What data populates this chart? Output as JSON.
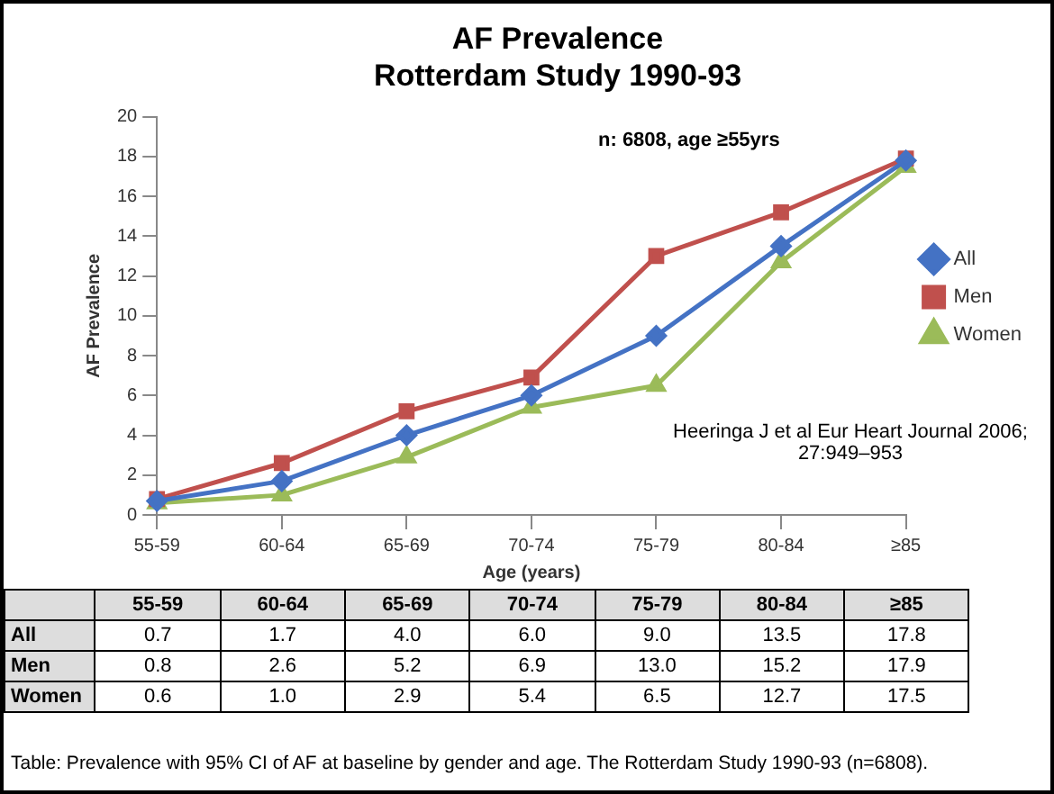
{
  "chart_data": {
    "type": "line",
    "title": "AF Prevalence",
    "subtitle": "Rotterdam Study 1990-93",
    "xlabel": "Age (years)",
    "ylabel": "AF Prevalence",
    "categories": [
      "55-59",
      "60-64",
      "65-69",
      "70-74",
      "75-79",
      "80-84",
      "≥85"
    ],
    "series": [
      {
        "name": "All",
        "color": "#4472c4",
        "marker": "diamond",
        "values": [
          0.7,
          1.7,
          4.0,
          6.0,
          9.0,
          13.5,
          17.8
        ],
        "value_labels": [
          "0.7",
          "1.7",
          "4.0",
          "6.0",
          "9.0",
          "13.5",
          "17.8"
        ]
      },
      {
        "name": "Men",
        "color": "#c0504d",
        "marker": "square",
        "values": [
          0.8,
          2.6,
          5.2,
          6.9,
          13.0,
          15.2,
          17.9
        ],
        "value_labels": [
          "0.8",
          "2.6",
          "5.2",
          "6.9",
          "13.0",
          "15.2",
          "17.9"
        ]
      },
      {
        "name": "Women",
        "color": "#9bbb59",
        "marker": "triangle",
        "values": [
          0.6,
          1.0,
          2.9,
          5.4,
          6.5,
          12.7,
          17.5
        ],
        "value_labels": [
          "0.6",
          "1.0",
          "2.9",
          "5.4",
          "6.5",
          "12.7",
          "17.5"
        ]
      }
    ],
    "ylim": [
      0,
      20
    ],
    "yticks": [
      0,
      2,
      4,
      6,
      8,
      10,
      12,
      14,
      16,
      18,
      20
    ],
    "grid": false,
    "legend": "right",
    "line_style": "solid",
    "annotations": [
      "n: 6808, age ≥55yrs",
      "Heeringa J et al Eur Heart Journal 2006; 27:949–953",
      "Table: Prevalence with 95% CI of AF at baseline by gender and age. The Rotterdam Study 1990-93 (n=6808)."
    ]
  }
}
